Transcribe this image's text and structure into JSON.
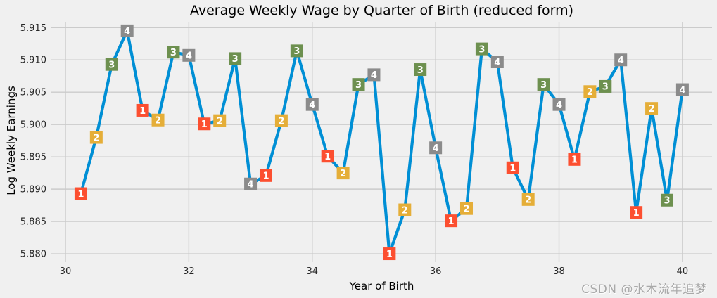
{
  "figure": {
    "background": "#f0f0f0",
    "grid_color": "#cbcbcb",
    "tick_text_color": "#262626",
    "title_text_color": "#000000"
  },
  "watermark": {
    "text": "CSDN @水木流年追梦",
    "color": "#a9a9a9"
  },
  "chart_data": {
    "type": "line",
    "title": "Average Weekly Wage by Quarter of Birth (reduced form)",
    "xlabel": "Year of Birth",
    "ylabel": "Log Weekly Earnings",
    "xlim": [
      29.772,
      40.48
    ],
    "ylim": [
      5.8787,
      5.9159
    ],
    "x_ticks": [
      30,
      32,
      34,
      36,
      38,
      40
    ],
    "y_ticks": [
      5.88,
      5.885,
      5.89,
      5.895,
      5.9,
      5.905,
      5.91,
      5.915
    ],
    "grid": true,
    "legend": "none",
    "line_color": "#008fd5",
    "marker_shape": "square",
    "marker_label_meaning": "quarter of birth",
    "quarter_marker_colors": {
      "q1": "#fc4f30",
      "q2": "#e5ae38",
      "q3": "#6d904f",
      "q4": "#8b8b8b"
    },
    "series": [
      {
        "name": "Average weekly wage",
        "points": [
          {
            "x": 30.25,
            "quarter": 1,
            "y": 5.8893
          },
          {
            "x": 30.5,
            "quarter": 2,
            "y": 5.898
          },
          {
            "x": 30.75,
            "quarter": 3,
            "y": 5.9093
          },
          {
            "x": 31.0,
            "quarter": 4,
            "y": 5.9145
          },
          {
            "x": 31.25,
            "quarter": 1,
            "y": 5.9022
          },
          {
            "x": 31.5,
            "quarter": 2,
            "y": 5.9007
          },
          {
            "x": 31.75,
            "quarter": 3,
            "y": 5.9112
          },
          {
            "x": 32.0,
            "quarter": 4,
            "y": 5.9107
          },
          {
            "x": 32.25,
            "quarter": 1,
            "y": 5.9001
          },
          {
            "x": 32.5,
            "quarter": 2,
            "y": 5.9006
          },
          {
            "x": 32.75,
            "quarter": 3,
            "y": 5.9102
          },
          {
            "x": 33.0,
            "quarter": 4,
            "y": 5.8908
          },
          {
            "x": 33.25,
            "quarter": 1,
            "y": 5.8921
          },
          {
            "x": 33.5,
            "quarter": 2,
            "y": 5.9006
          },
          {
            "x": 33.75,
            "quarter": 3,
            "y": 5.9114
          },
          {
            "x": 34.0,
            "quarter": 4,
            "y": 5.9031
          },
          {
            "x": 34.25,
            "quarter": 1,
            "y": 5.8951
          },
          {
            "x": 34.5,
            "quarter": 2,
            "y": 5.8925
          },
          {
            "x": 34.75,
            "quarter": 3,
            "y": 5.9062
          },
          {
            "x": 35.0,
            "quarter": 4,
            "y": 5.9077
          },
          {
            "x": 35.25,
            "quarter": 1,
            "y": 5.88
          },
          {
            "x": 35.5,
            "quarter": 2,
            "y": 5.8868
          },
          {
            "x": 35.75,
            "quarter": 3,
            "y": 5.9085
          },
          {
            "x": 36.0,
            "quarter": 4,
            "y": 5.8964
          },
          {
            "x": 36.25,
            "quarter": 1,
            "y": 5.8851
          },
          {
            "x": 36.5,
            "quarter": 2,
            "y": 5.887
          },
          {
            "x": 36.75,
            "quarter": 3,
            "y": 5.9117
          },
          {
            "x": 37.0,
            "quarter": 4,
            "y": 5.9097
          },
          {
            "x": 37.25,
            "quarter": 1,
            "y": 5.8933
          },
          {
            "x": 37.5,
            "quarter": 2,
            "y": 5.8884
          },
          {
            "x": 37.75,
            "quarter": 3,
            "y": 5.9062
          },
          {
            "x": 38.0,
            "quarter": 4,
            "y": 5.9031
          },
          {
            "x": 38.25,
            "quarter": 1,
            "y": 5.8946
          },
          {
            "x": 38.5,
            "quarter": 2,
            "y": 5.9051
          },
          {
            "x": 38.75,
            "quarter": 3,
            "y": 5.9059
          },
          {
            "x": 39.0,
            "quarter": 4,
            "y": 5.91
          },
          {
            "x": 39.25,
            "quarter": 1,
            "y": 5.8864
          },
          {
            "x": 39.5,
            "quarter": 2,
            "y": 5.9025
          },
          {
            "x": 39.75,
            "quarter": 3,
            "y": 5.8883
          },
          {
            "x": 40.0,
            "quarter": 4,
            "y": 5.9054
          }
        ]
      }
    ]
  }
}
